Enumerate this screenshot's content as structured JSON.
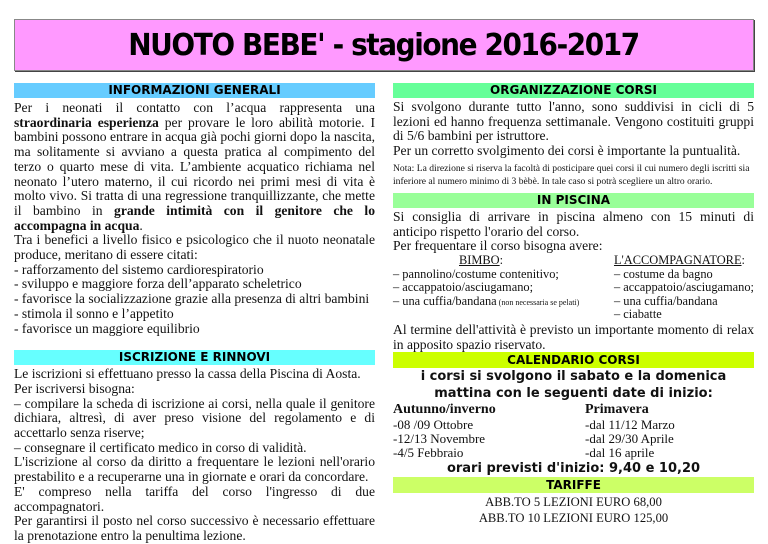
{
  "title": {
    "main": "NUOTO BEBE'",
    "sub": " - stagione 2016-2017",
    "bg_color": "#ff99ff"
  },
  "info": {
    "header": "INFORMAZIONI GENERALI",
    "header_color": "#66ccff",
    "p1_a": "Per i neonati il contatto con l’acqua rappresenta una ",
    "p1_b": "straordinaria esperienza",
    "p1_c": " per provare le loro abilità motorie. I bambini possono entrare in acqua già pochi giorni dopo la nascita, ma solitamente si avviano a questa pratica al compimento del terzo o quarto mese di vita. L’ambiente acquatico richiama nel neonato l’utero materno, il cui ricordo nei primi mesi di vita è molto vivo. Si tratta di una regressione tranquillizzante, che mette il bambino in ",
    "p1_d": "grande intimità con il genitore che lo accompagna in acqua",
    "p1_e": ".",
    "p2": "Tra i benefici a livello fisico e psicologico che il nuoto neonatale produce, meritano di essere citati:",
    "benefits": [
      " - rafforzamento del sistemo cardiorespiratorio",
      " - sviluppo e maggiore forza dell’apparato scheletrico",
      " - favorisce la socializzazione grazie alla presenza di altri bambini",
      " - stimola il sonno e l’appetito",
      " - favorisce un maggiore equilibrio"
    ]
  },
  "iscrizione": {
    "header": "ISCRIZIONE E RINNOVI",
    "header_color": "#66ffff",
    "lines": [
      "Le iscrizioni si effettuano presso la cassa della Piscina di Aosta.",
      "Per iscriversi bisogna:",
      "– compilare la scheda di iscrizione ai corsi, nella quale il genitore dichiara, altresì, di aver preso visione del regolamento e di accettarlo senza riserve;",
      "– consegnare il certificato medico in corso di validità.",
      "L'iscrizione al corso da diritto a frequentare le lezioni nell'orario prestabilito e a recuperarne una in giornate e orari da concordare.",
      "E' compreso nella tariffa del corso l'ingresso di due accompagnatori.",
      "Per garantirsi il posto nel corso successivo è necessario effettuare la prenotazione entro la penultima lezione."
    ]
  },
  "organizzazione": {
    "header": "ORGANIZZAZIONE CORSI",
    "header_color": "#66ff99",
    "p1": "Si svolgono durante tutto l'anno, sono suddivisi in cicli di 5 lezioni ed hanno frequenza settimanale. Vengono costituiti gruppi di 5/6 bambini per istruttore.",
    "p2": "Per un corretto svolgimento dei corsi è importante la puntualità.",
    "nota": "Nota: La direzione si riserva la facoltà di posticipare quei corsi il cui numero degli iscritti sia inferiore al numero minimo di 3 bèbè. In tale caso si potrà scegliere un altro orario."
  },
  "piscina": {
    "header": "IN PISCINA",
    "header_color": "#99ff99",
    "p1": "Si consiglia di arrivare in piscina almeno con 15 minuti di anticipo rispetto l'orario del corso.",
    "p2": "Per frequentare il corso bisogna avere:",
    "bimbo_label": "BIMBO",
    "bimbo_items": [
      "– pannolino/costume contenitivo;",
      "– accappatoio/asciugamano;",
      "– una cuffia/bandana"
    ],
    "bimbo_note": " (non necessaria se pelati)",
    "accomp_label": "L'ACCOMPAGNATORE",
    "accomp_items": [
      "– costume da bagno",
      "– accappatoio/asciugamano;",
      "– una cuffia/bandana",
      "– ciabatte"
    ],
    "p3": "Al termine dell'attività è previsto un importante momento di relax in apposito spazio riservato."
  },
  "calendario": {
    "header": "CALENDARIO CORSI",
    "header_color": "#ccff00",
    "intro": "i corsi si svolgono il sabato e la domenica mattina con le seguenti date di inizio:",
    "autunno_label": "Autunno/inverno",
    "autunno": [
      "-08 /09 Ottobre",
      "-12/13 Novembre",
      "-4/5 Febbraio"
    ],
    "primavera_label": "Primavera",
    "primavera": [
      "-dal 11/12 Marzo",
      "-dal 29/30 Aprile",
      "-dal 16 aprile"
    ],
    "orari": "orari previsti d'inizio: 9,40 e 10,20"
  },
  "tariffe": {
    "header": "TARIFFE",
    "header_color": "#ccff66",
    "items": [
      "ABB.TO 5 LEZIONI EURO 68,00",
      "ABB.TO 10 LEZIONI  EURO 125,00"
    ]
  }
}
